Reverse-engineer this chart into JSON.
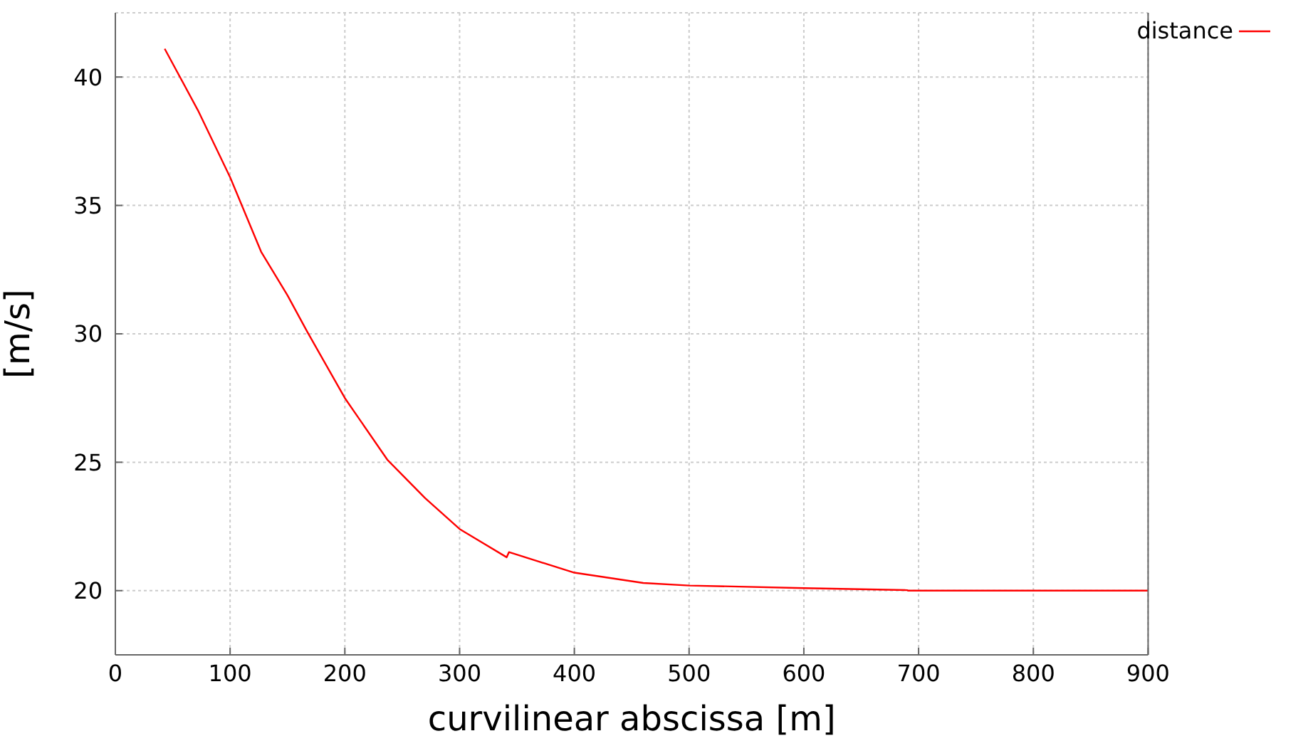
{
  "chart_data": {
    "type": "line",
    "xlabel": "curvilinear abscissa [m]",
    "ylabel": "[m/s]",
    "x": [
      43,
      72,
      100,
      127,
      150,
      167,
      200,
      237,
      270,
      300,
      341,
      343,
      400,
      460,
      500,
      600,
      690,
      691,
      800,
      900
    ],
    "series": [
      {
        "name": "distance",
        "color": "#ff0000",
        "values": [
          41.1,
          38.7,
          36.1,
          33.2,
          31.5,
          30.1,
          27.5,
          25.1,
          23.6,
          22.4,
          21.3,
          21.5,
          20.7,
          20.3,
          20.2,
          20.1,
          20.02,
          20.0,
          20.0,
          20.0
        ]
      }
    ],
    "xlim": [
      0,
      900
    ],
    "xticks": [
      0,
      100,
      200,
      300,
      400,
      500,
      600,
      700,
      800,
      900
    ],
    "ylim": [
      17.5,
      42.5
    ],
    "yticks": [
      20,
      25,
      30,
      35,
      40
    ],
    "grid": true,
    "legend": "top right",
    "marker": "none",
    "line_style": "solid"
  }
}
